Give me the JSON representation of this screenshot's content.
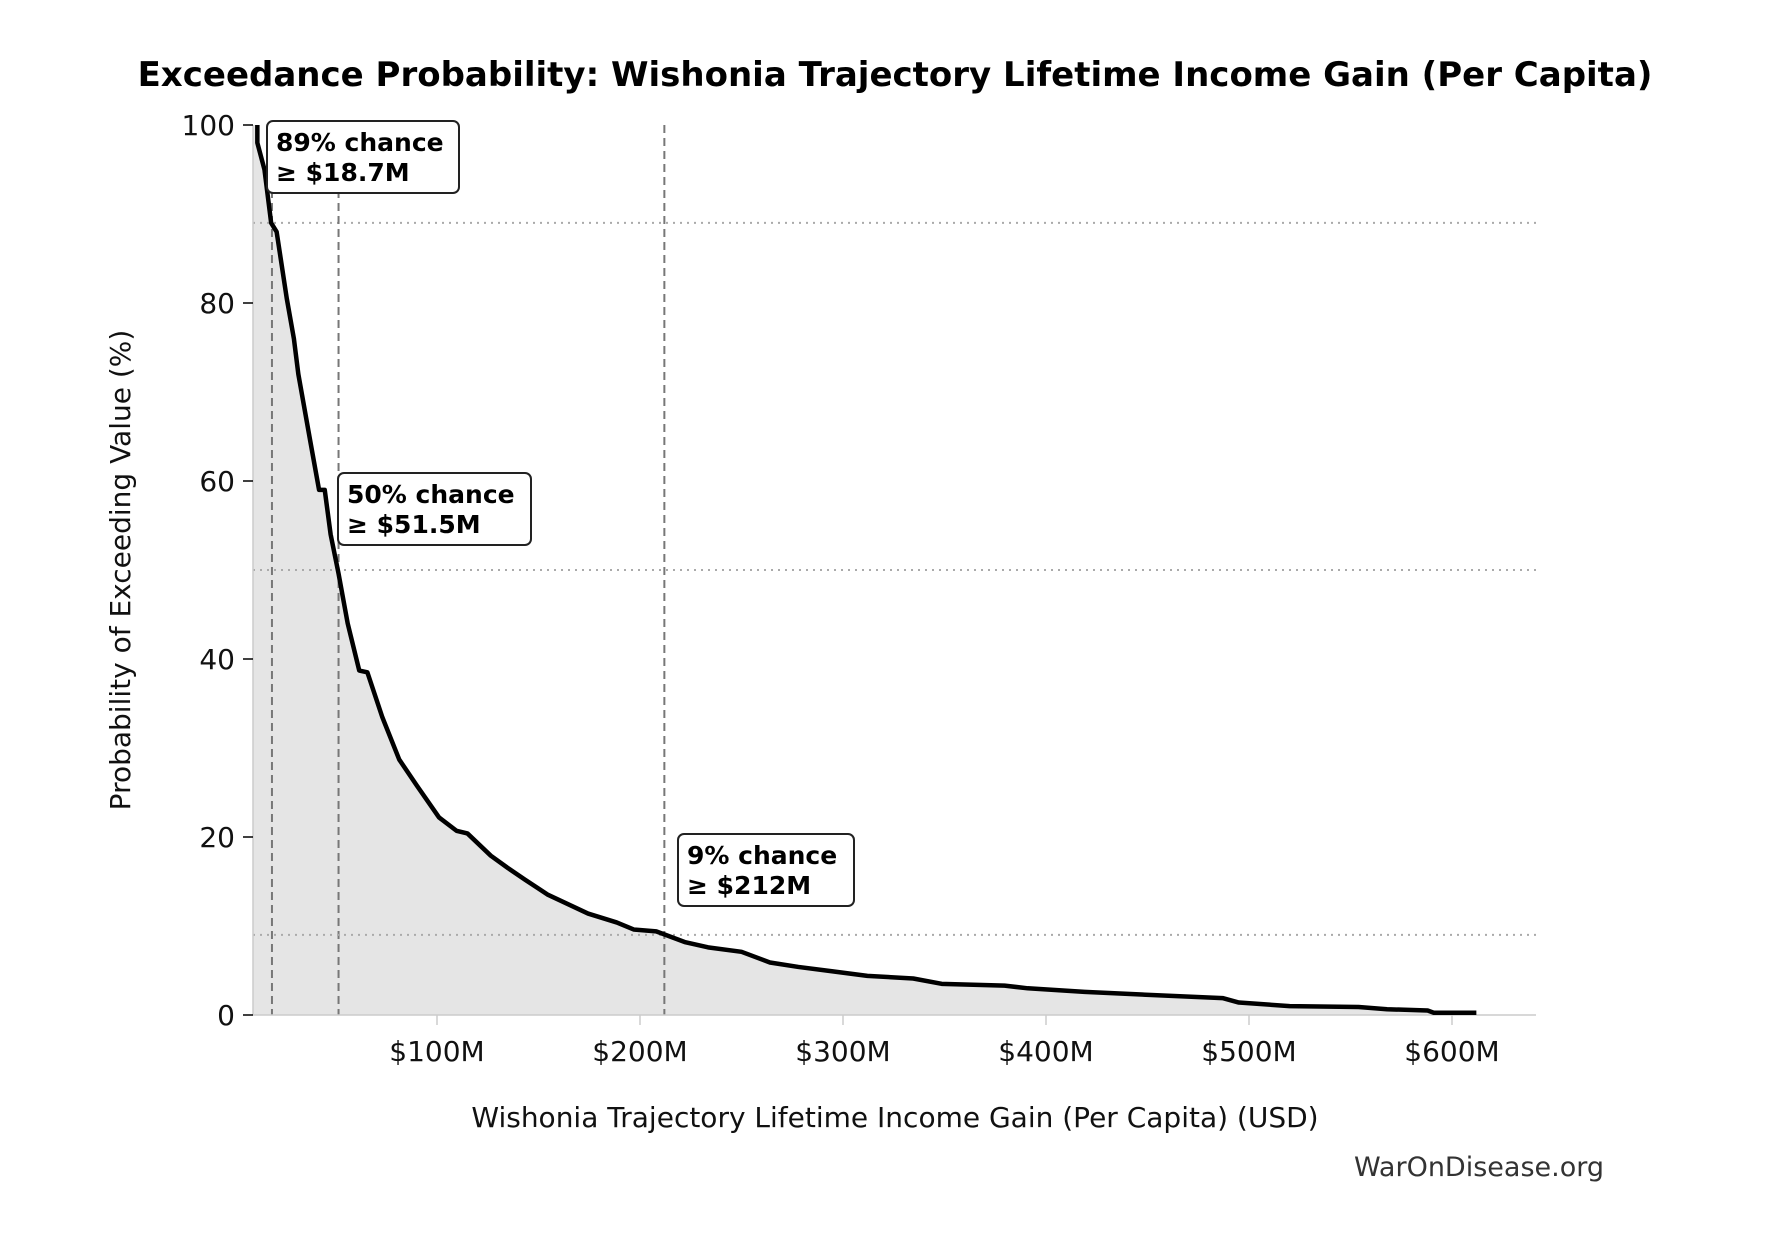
{
  "chart_data": {
    "type": "area",
    "title": "Exceedance Probability: Wishonia Trajectory Lifetime Income Gain (Per Capita)",
    "xlabel": "Wishonia Trajectory Lifetime Income Gain (Per Capita) (USD)",
    "ylabel": "Probability of Exceeding Value (%)",
    "xlim": [
      9.4,
      645
    ],
    "ylim": [
      0,
      100
    ],
    "x_units": "millions USD",
    "x_ticks": [
      100,
      200,
      300,
      400,
      500,
      600
    ],
    "x_tick_labels": [
      "$100M",
      "$200M",
      "$300M",
      "$400M",
      "$500M",
      "$600M"
    ],
    "y_ticks": [
      0,
      20,
      40,
      60,
      80,
      100
    ],
    "y_tick_labels": [
      "0",
      "20",
      "40",
      "60",
      "80",
      "100"
    ],
    "grid": false,
    "line_color": "#000000",
    "fill_color": "#e5e5e5",
    "series": [
      {
        "x": [
          11.5,
          11.5,
          15,
          18.3,
          21,
          26,
          29.5,
          31.7,
          37.4,
          41.9,
          44.7,
          47.6,
          51.5,
          56,
          61.7,
          65.7,
          73,
          81.4,
          90,
          101,
          109.6,
          115,
          126.5,
          135,
          143.4,
          154.7,
          166,
          174.4,
          188.5,
          197,
          208,
          222,
          233.5,
          250,
          264,
          278,
          295,
          312,
          334.6,
          348.6,
          379.6,
          391,
          419,
          447,
          487,
          495,
          520,
          554,
          568,
          588,
          591,
          612
        ],
        "y": [
          100,
          98,
          95,
          89,
          88,
          80.5,
          76,
          72,
          64.7,
          59,
          59,
          54,
          49.6,
          44,
          38.7,
          38.5,
          33.5,
          28.7,
          25.8,
          22.2,
          20.7,
          20.4,
          17.9,
          16.5,
          15.2,
          13.5,
          12.3,
          11.4,
          10.4,
          9.6,
          9.4,
          8.2,
          7.6,
          7.1,
          5.9,
          5.4,
          4.9,
          4.4,
          4.1,
          3.5,
          3.3,
          3.0,
          2.6,
          2.3,
          1.9,
          1.4,
          1.0,
          0.9,
          0.65,
          0.5,
          0.25,
          0.25
        ]
      }
    ],
    "reference_lines": [
      {
        "probability": 89,
        "value": 18.7
      },
      {
        "probability": 50,
        "value": 51.5
      },
      {
        "probability": 9,
        "value": 212
      }
    ],
    "annotations": [
      {
        "line1": "89% chance",
        "line2": "≥ $18.7M"
      },
      {
        "line1": "50% chance",
        "line2": "≥ $51.5M"
      },
      {
        "line1": "9% chance",
        "line2": "≥ $212M"
      }
    ],
    "watermark": "WarOnDisease.org"
  }
}
